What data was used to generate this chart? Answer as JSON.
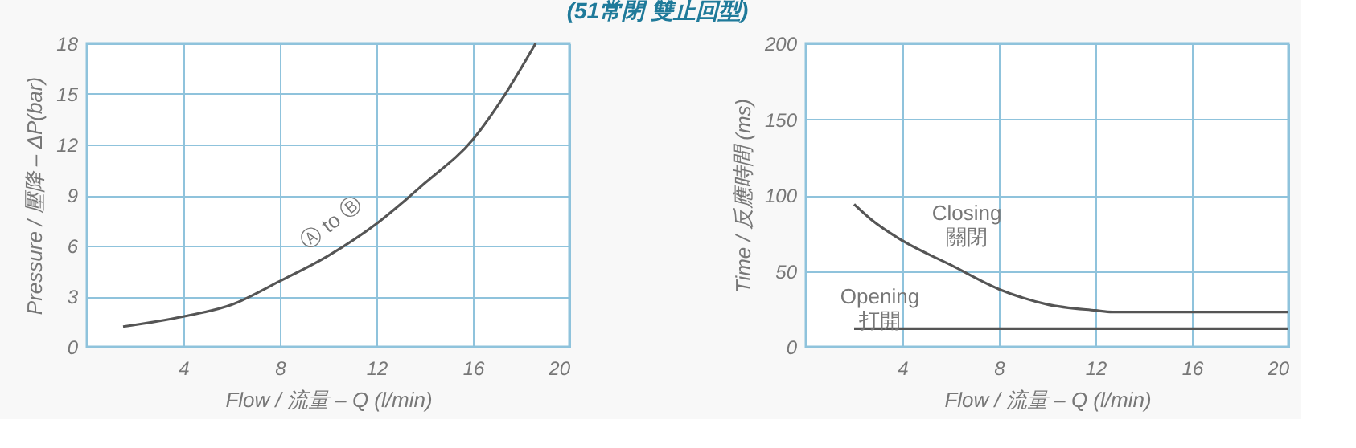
{
  "chart_data": [
    {
      "type": "line",
      "title": "(51常閉  雙止回型)",
      "xlabel": "Flow / 流量 – Q (l/min)",
      "ylabel": "Pressure / 壓降 – ΔP(bar)",
      "xlim": [
        0,
        20
      ],
      "ylim": [
        0,
        18
      ],
      "xticks": [
        4,
        8,
        12,
        16,
        20
      ],
      "yticks": [
        0,
        3,
        6,
        9,
        12,
        15,
        18
      ],
      "grid": true,
      "line_style": "solid",
      "marker": "none",
      "series": [
        {
          "color": "#555555",
          "x": [
            1.5,
            4,
            6,
            8,
            10,
            12,
            14,
            16,
            17.3,
            18.6
          ],
          "values": [
            1.2,
            1.8,
            2.5,
            3.9,
            5.4,
            7.3,
            9.7,
            12.3,
            14.9,
            18
          ]
        }
      ],
      "annotations": [
        "Ⓐ to Ⓑ"
      ]
    },
    {
      "type": "line",
      "xlabel": "Flow / 流量 – Q (l/min)",
      "ylabel": "Time / 反應時間 (ms)",
      "xlim": [
        0,
        20
      ],
      "ylim": [
        0,
        200
      ],
      "xticks": [
        4,
        8,
        12,
        16,
        20
      ],
      "yticks": [
        0,
        50,
        100,
        150,
        200
      ],
      "grid": true,
      "line_style": "solid",
      "marker": "none",
      "series": [
        {
          "color": "#555555",
          "x": [
            2,
            2.7,
            4,
            6,
            8,
            10,
            12,
            12.7,
            20
          ],
          "values": [
            94,
            84,
            70,
            54,
            38,
            28,
            24,
            23,
            23
          ]
        },
        {
          "color": "#555555",
          "x": [
            2,
            20
          ],
          "values": [
            12,
            12
          ]
        }
      ],
      "annotations": [
        "Closing\n關閉",
        "Opening\n打開"
      ]
    }
  ]
}
